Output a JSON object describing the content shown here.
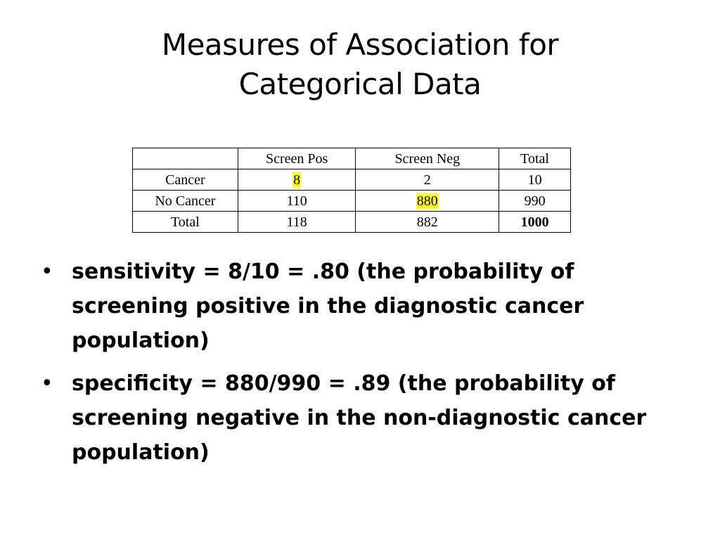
{
  "slide": {
    "title_line1": "Measures of Association for",
    "title_line2": "Categorical Data"
  },
  "table": {
    "header": [
      "",
      "Screen Pos",
      "Screen Neg",
      "Total"
    ],
    "rows": [
      [
        "Cancer",
        "8",
        "2",
        "10"
      ],
      [
        "No Cancer",
        "110",
        "880",
        "990"
      ],
      [
        "Total",
        "118",
        "882",
        "1000"
      ]
    ],
    "highlight_color": "#ffff00"
  },
  "bullets": [
    {
      "marker": "•",
      "text": "sensitivity = 8/10 = .80 (the probability of screening positive in the diagnostic cancer population)"
    },
    {
      "marker": "•",
      "text": "specificity = 880/990 = .89 (the probability of screening negative in the non-diagnostic cancer population)"
    }
  ]
}
